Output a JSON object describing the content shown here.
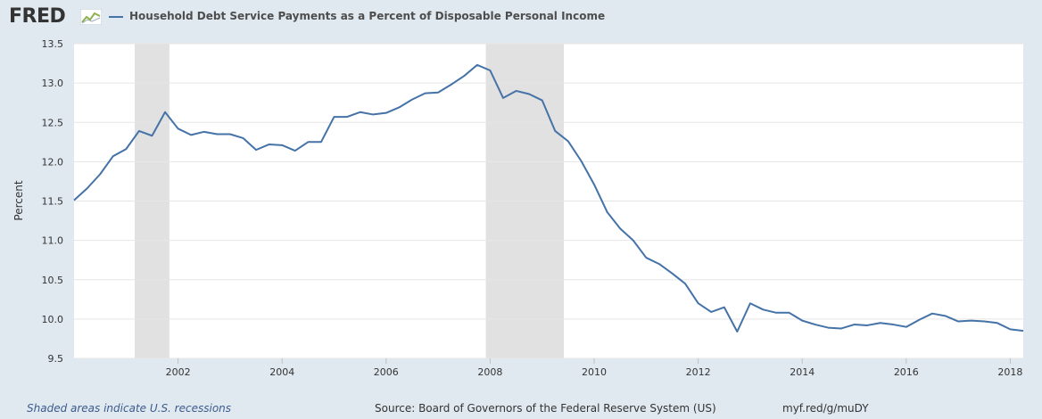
{
  "header": {
    "logo_text": "FRED",
    "series_title": "Household Debt Service Payments as a Percent of Disposable Personal Income"
  },
  "footer": {
    "recession_note": "Shaded areas indicate U.S. recessions",
    "source": "Source: Board of Governors of the Federal Reserve System (US)",
    "short_url": "myf.red/g/muDY"
  },
  "colors": {
    "line": "#4572a7",
    "recession_shade": "#e1e1e1",
    "background": "#e1e9f0",
    "plot_background": "#ffffff",
    "grid": "#e6e6e6"
  },
  "chart_data": {
    "type": "line",
    "title": "Household Debt Service Payments as a Percent of Disposable Personal Income",
    "xlabel": "",
    "ylabel": "Percent",
    "ylim": [
      9.5,
      13.5
    ],
    "xlim": [
      "2000-01-01",
      "2018-04-01"
    ],
    "y_ticks": [
      "9.5",
      "10.0",
      "10.5",
      "11.0",
      "11.5",
      "12.0",
      "12.5",
      "13.0",
      "13.5"
    ],
    "x_ticks": [
      "2002",
      "2004",
      "2006",
      "2008",
      "2010",
      "2012",
      "2014",
      "2016",
      "2018"
    ],
    "grid": true,
    "recessions": [
      {
        "start": "2001-03-01",
        "end": "2001-11-01"
      },
      {
        "start": "2007-12-01",
        "end": "2009-06-01"
      }
    ],
    "series": [
      {
        "name": "Household Debt Service Payments as a Percent of Disposable Personal Income",
        "x": [
          "2000-01-01",
          "2000-04-01",
          "2000-07-01",
          "2000-10-01",
          "2001-01-01",
          "2001-04-01",
          "2001-07-01",
          "2001-10-01",
          "2002-01-01",
          "2002-04-01",
          "2002-07-01",
          "2002-10-01",
          "2003-01-01",
          "2003-04-01",
          "2003-07-01",
          "2003-10-01",
          "2004-01-01",
          "2004-04-01",
          "2004-07-01",
          "2004-10-01",
          "2005-01-01",
          "2005-04-01",
          "2005-07-01",
          "2005-10-01",
          "2006-01-01",
          "2006-04-01",
          "2006-07-01",
          "2006-10-01",
          "2007-01-01",
          "2007-04-01",
          "2007-07-01",
          "2007-10-01",
          "2008-01-01",
          "2008-04-01",
          "2008-07-01",
          "2008-10-01",
          "2009-01-01",
          "2009-04-01",
          "2009-07-01",
          "2009-10-01",
          "2010-01-01",
          "2010-04-01",
          "2010-07-01",
          "2010-10-01",
          "2011-01-01",
          "2011-04-01",
          "2011-07-01",
          "2011-10-01",
          "2012-01-01",
          "2012-04-01",
          "2012-07-01",
          "2012-10-01",
          "2013-01-01",
          "2013-04-01",
          "2013-07-01",
          "2013-10-01",
          "2014-01-01",
          "2014-04-01",
          "2014-07-01",
          "2014-10-01",
          "2015-01-01",
          "2015-04-01",
          "2015-07-01",
          "2015-10-01",
          "2016-01-01",
          "2016-04-01",
          "2016-07-01",
          "2016-10-01",
          "2017-01-01",
          "2017-04-01",
          "2017-07-01",
          "2017-10-01",
          "2018-01-01",
          "2018-04-01"
        ],
        "values": [
          11.51,
          11.66,
          11.84,
          12.07,
          12.16,
          12.39,
          12.33,
          12.63,
          12.42,
          12.34,
          12.38,
          12.35,
          12.35,
          12.3,
          12.15,
          12.22,
          12.21,
          12.14,
          12.25,
          12.25,
          12.57,
          12.57,
          12.63,
          12.6,
          12.62,
          12.69,
          12.79,
          12.87,
          12.88,
          12.98,
          13.09,
          13.23,
          13.16,
          12.81,
          12.9,
          12.86,
          12.78,
          12.39,
          12.26,
          12.01,
          11.71,
          11.36,
          11.15,
          11.0,
          10.78,
          10.7,
          10.58,
          10.45,
          10.2,
          10.09,
          10.15,
          9.84,
          10.2,
          10.12,
          10.08,
          10.08,
          9.98,
          9.93,
          9.89,
          9.88,
          9.93,
          9.92,
          9.95,
          9.93,
          9.9,
          9.99,
          10.07,
          10.04,
          9.97,
          9.98,
          9.97,
          9.95,
          9.87,
          9.85
        ]
      }
    ]
  }
}
